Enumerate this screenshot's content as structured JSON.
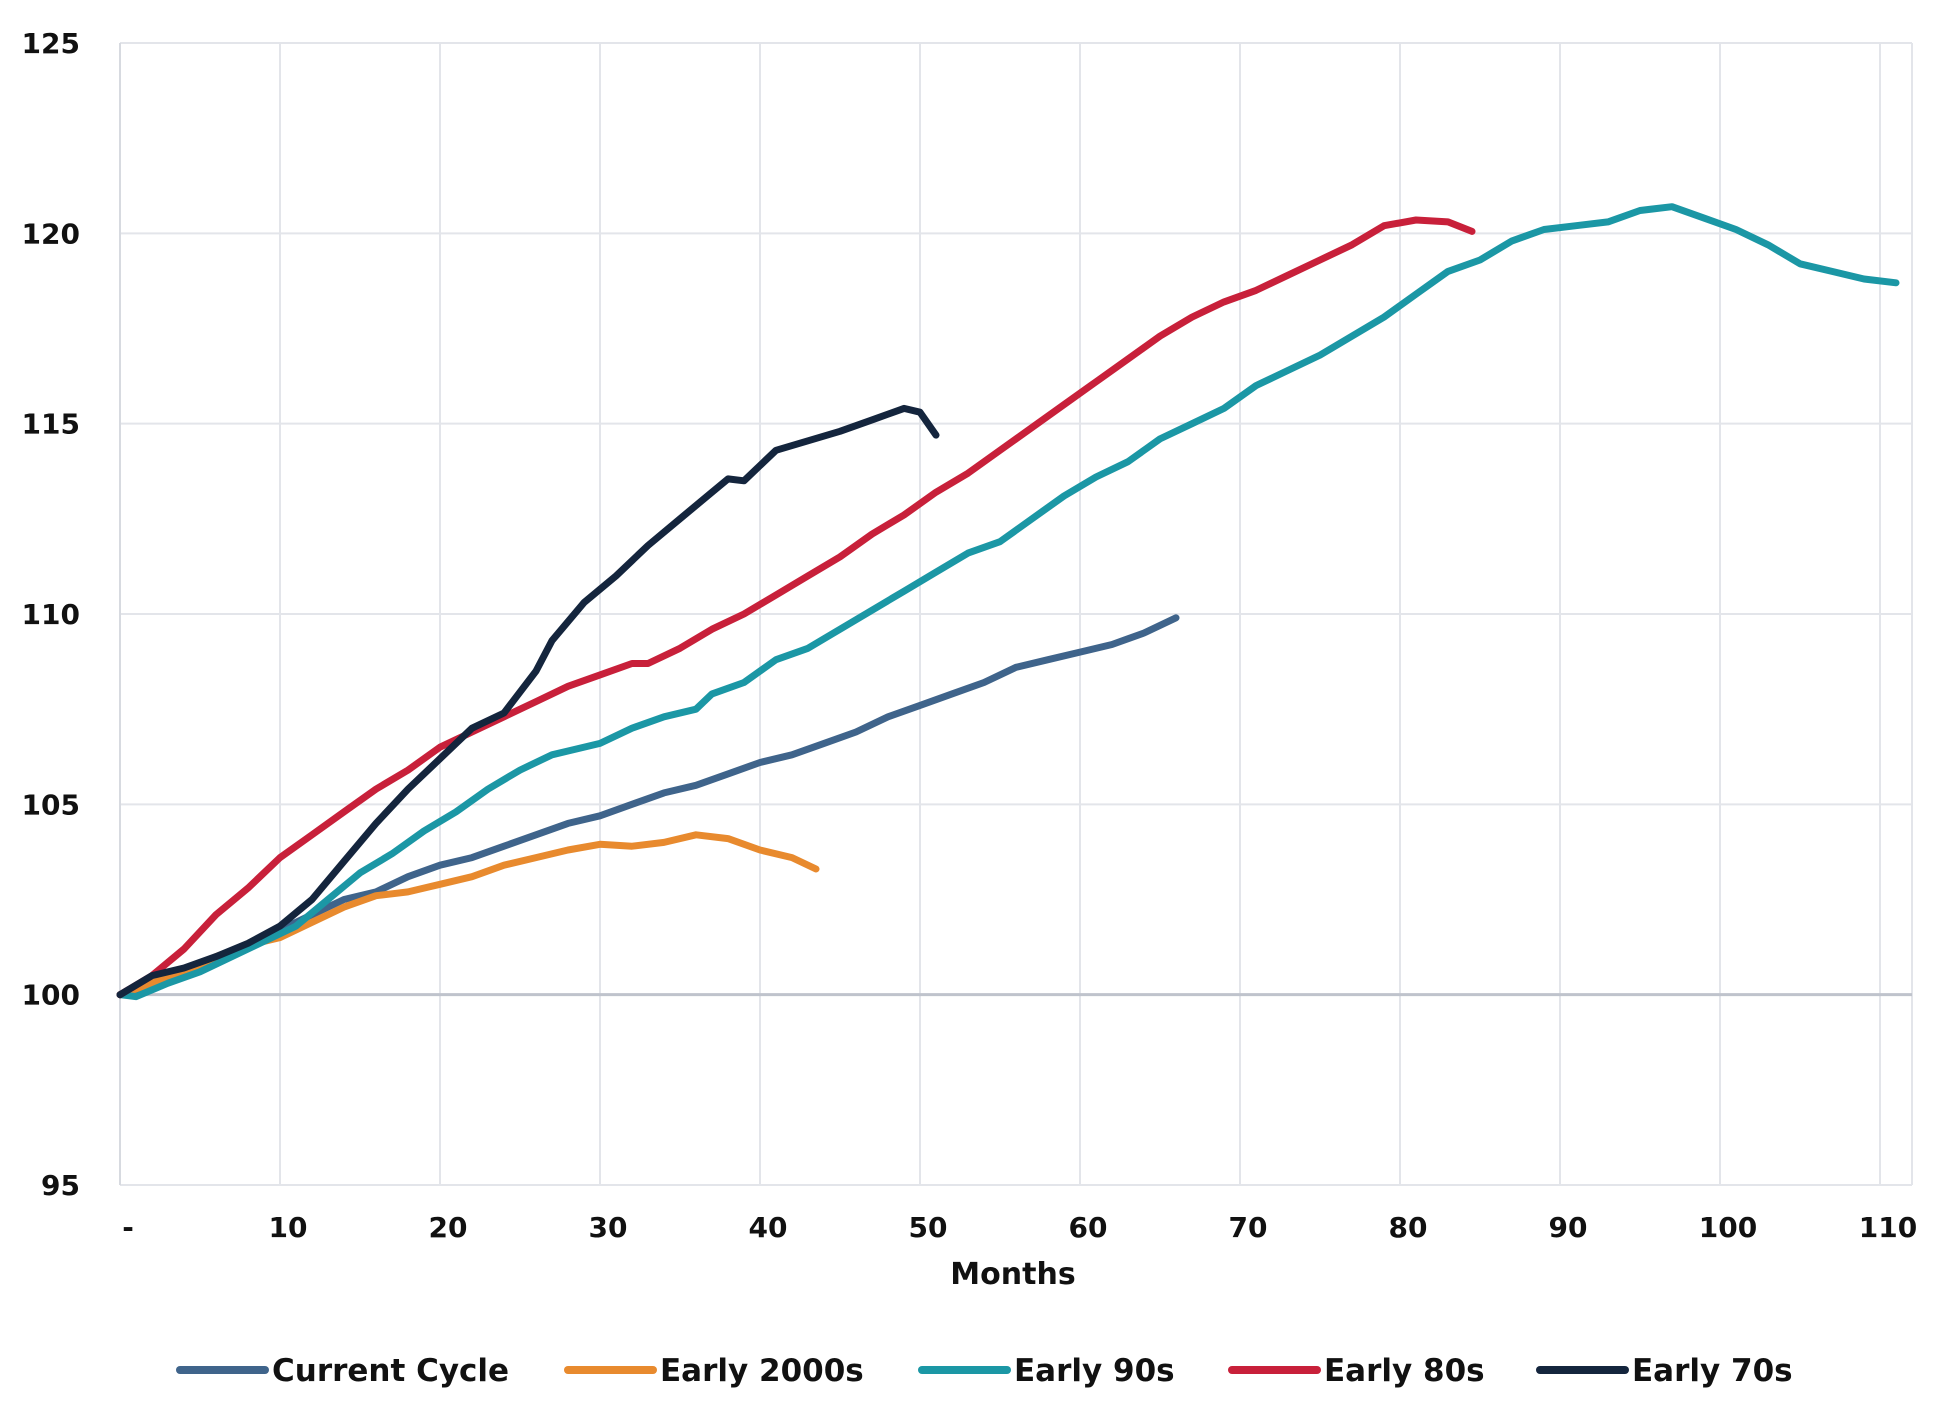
{
  "chart_data": {
    "type": "line",
    "title": "",
    "xlabel": "Months",
    "ylabel": "",
    "xlim": [
      0,
      112
    ],
    "ylim": [
      95,
      125
    ],
    "y_ticks": [
      95,
      100,
      105,
      110,
      115,
      120,
      125
    ],
    "x_ticks": [
      0,
      10,
      20,
      30,
      40,
      50,
      60,
      70,
      80,
      90,
      100,
      110
    ],
    "x_tick_labels": [
      "-",
      "10",
      "20",
      "30",
      "40",
      "50",
      "60",
      "70",
      "80",
      "90",
      "100",
      "110"
    ],
    "baseline": 100,
    "grid": true,
    "legend_position": "bottom",
    "series": [
      {
        "name": "Current Cycle",
        "color": "#3F648B",
        "points": [
          [
            0,
            100
          ],
          [
            2,
            100.2
          ],
          [
            4,
            100.5
          ],
          [
            6,
            100.9
          ],
          [
            8,
            101.3
          ],
          [
            10,
            101.7
          ],
          [
            12,
            102.1
          ],
          [
            14,
            102.5
          ],
          [
            16,
            102.7
          ],
          [
            18,
            103.1
          ],
          [
            20,
            103.4
          ],
          [
            22,
            103.6
          ],
          [
            24,
            103.9
          ],
          [
            26,
            104.2
          ],
          [
            28,
            104.5
          ],
          [
            30,
            104.7
          ],
          [
            32,
            105.0
          ],
          [
            34,
            105.3
          ],
          [
            36,
            105.5
          ],
          [
            38,
            105.8
          ],
          [
            40,
            106.1
          ],
          [
            42,
            106.3
          ],
          [
            44,
            106.6
          ],
          [
            46,
            106.9
          ],
          [
            48,
            107.3
          ],
          [
            50,
            107.6
          ],
          [
            52,
            107.9
          ],
          [
            54,
            108.2
          ],
          [
            56,
            108.6
          ],
          [
            58,
            108.8
          ],
          [
            60,
            109.0
          ],
          [
            62,
            109.2
          ],
          [
            64,
            109.5
          ],
          [
            66,
            109.9
          ]
        ]
      },
      {
        "name": "Early 2000s",
        "color": "#E88A2E",
        "points": [
          [
            0,
            100
          ],
          [
            2,
            100.3
          ],
          [
            4,
            100.6
          ],
          [
            6,
            101.0
          ],
          [
            8,
            101.3
          ],
          [
            10,
            101.5
          ],
          [
            12,
            101.9
          ],
          [
            14,
            102.3
          ],
          [
            16,
            102.6
          ],
          [
            18,
            102.7
          ],
          [
            20,
            102.9
          ],
          [
            22,
            103.1
          ],
          [
            24,
            103.4
          ],
          [
            26,
            103.6
          ],
          [
            28,
            103.8
          ],
          [
            30,
            103.95
          ],
          [
            32,
            103.9
          ],
          [
            34,
            104.0
          ],
          [
            36,
            104.2
          ],
          [
            38,
            104.1
          ],
          [
            40,
            103.8
          ],
          [
            42,
            103.6
          ],
          [
            43.5,
            103.3
          ]
        ]
      },
      {
        "name": "Early 90s",
        "color": "#1B97A5",
        "points": [
          [
            0,
            100
          ],
          [
            1,
            99.95
          ],
          [
            3,
            100.3
          ],
          [
            5,
            100.6
          ],
          [
            7,
            101.0
          ],
          [
            9,
            101.4
          ],
          [
            11,
            101.8
          ],
          [
            13,
            102.5
          ],
          [
            15,
            103.2
          ],
          [
            17,
            103.7
          ],
          [
            19,
            104.3
          ],
          [
            21,
            104.8
          ],
          [
            23,
            105.4
          ],
          [
            25,
            105.9
          ],
          [
            27,
            106.3
          ],
          [
            28,
            106.4
          ],
          [
            30,
            106.6
          ],
          [
            32,
            107.0
          ],
          [
            34,
            107.3
          ],
          [
            36,
            107.5
          ],
          [
            37,
            107.9
          ],
          [
            39,
            108.2
          ],
          [
            41,
            108.8
          ],
          [
            43,
            109.1
          ],
          [
            45,
            109.6
          ],
          [
            47,
            110.1
          ],
          [
            49,
            110.6
          ],
          [
            51,
            111.1
          ],
          [
            53,
            111.6
          ],
          [
            55,
            111.9
          ],
          [
            57,
            112.5
          ],
          [
            59,
            113.1
          ],
          [
            61,
            113.6
          ],
          [
            63,
            114.0
          ],
          [
            65,
            114.6
          ],
          [
            67,
            115.0
          ],
          [
            69,
            115.4
          ],
          [
            71,
            116.0
          ],
          [
            73,
            116.4
          ],
          [
            75,
            116.8
          ],
          [
            77,
            117.3
          ],
          [
            79,
            117.8
          ],
          [
            81,
            118.4
          ],
          [
            83,
            119.0
          ],
          [
            85,
            119.3
          ],
          [
            87,
            119.8
          ],
          [
            89,
            120.1
          ],
          [
            91,
            120.2
          ],
          [
            93,
            120.3
          ],
          [
            95,
            120.6
          ],
          [
            97,
            120.7
          ],
          [
            99,
            120.4
          ],
          [
            101,
            120.1
          ],
          [
            103,
            119.7
          ],
          [
            105,
            119.2
          ],
          [
            107,
            119.0
          ],
          [
            109,
            118.8
          ],
          [
            111,
            118.7
          ]
        ]
      },
      {
        "name": "Early 80s",
        "color": "#C8203A",
        "points": [
          [
            0,
            100
          ],
          [
            2,
            100.5
          ],
          [
            4,
            101.2
          ],
          [
            6,
            102.1
          ],
          [
            8,
            102.8
          ],
          [
            10,
            103.6
          ],
          [
            12,
            104.2
          ],
          [
            14,
            104.8
          ],
          [
            16,
            105.4
          ],
          [
            18,
            105.9
          ],
          [
            20,
            106.5
          ],
          [
            22,
            106.9
          ],
          [
            24,
            107.3
          ],
          [
            26,
            107.7
          ],
          [
            28,
            108.1
          ],
          [
            30,
            108.4
          ],
          [
            32,
            108.7
          ],
          [
            33,
            108.7
          ],
          [
            35,
            109.1
          ],
          [
            37,
            109.6
          ],
          [
            39,
            110.0
          ],
          [
            41,
            110.5
          ],
          [
            43,
            111.0
          ],
          [
            45,
            111.5
          ],
          [
            47,
            112.1
          ],
          [
            49,
            112.6
          ],
          [
            51,
            113.2
          ],
          [
            53,
            113.7
          ],
          [
            55,
            114.3
          ],
          [
            57,
            114.9
          ],
          [
            59,
            115.5
          ],
          [
            61,
            116.1
          ],
          [
            63,
            116.7
          ],
          [
            65,
            117.3
          ],
          [
            67,
            117.8
          ],
          [
            69,
            118.2
          ],
          [
            71,
            118.5
          ],
          [
            73,
            118.9
          ],
          [
            75,
            119.3
          ],
          [
            77,
            119.7
          ],
          [
            79,
            120.2
          ],
          [
            81,
            120.35
          ],
          [
            83,
            120.3
          ],
          [
            84.5,
            120.05
          ]
        ]
      },
      {
        "name": "Early 70s",
        "color": "#14253D",
        "points": [
          [
            0,
            100
          ],
          [
            2,
            100.5
          ],
          [
            4,
            100.7
          ],
          [
            6,
            101.0
          ],
          [
            8,
            101.35
          ],
          [
            10,
            101.8
          ],
          [
            12,
            102.5
          ],
          [
            14,
            103.5
          ],
          [
            16,
            104.5
          ],
          [
            18,
            105.4
          ],
          [
            20,
            106.2
          ],
          [
            22,
            107.0
          ],
          [
            24,
            107.4
          ],
          [
            26,
            108.5
          ],
          [
            27,
            109.3
          ],
          [
            29,
            110.3
          ],
          [
            31,
            111.0
          ],
          [
            33,
            111.8
          ],
          [
            35,
            112.5
          ],
          [
            37,
            113.2
          ],
          [
            38,
            113.55
          ],
          [
            39,
            113.5
          ],
          [
            41,
            114.3
          ],
          [
            43,
            114.55
          ],
          [
            45,
            114.8
          ],
          [
            47,
            115.1
          ],
          [
            49,
            115.4
          ],
          [
            50,
            115.3
          ],
          [
            51,
            114.7
          ]
        ]
      }
    ]
  }
}
